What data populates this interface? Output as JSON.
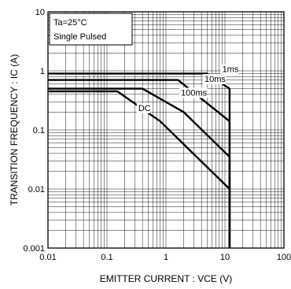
{
  "chart_data": {
    "type": "line",
    "title": "",
    "xlabel": "EMITTER  CURRENT : VCE (V)",
    "ylabel": "TRANSITION FREQUENCY : IC (A)",
    "x_scale": "log",
    "y_scale": "log",
    "xlim": [
      0.01,
      100
    ],
    "ylim": [
      0.001,
      10
    ],
    "x_ticks": [
      "0.01",
      "0.1",
      "1",
      "10",
      "100"
    ],
    "y_ticks": [
      "0.001",
      "0.01",
      "0.1",
      "1",
      "10"
    ],
    "grid": true,
    "legend_box": [
      "Ta=25°C",
      "Single Pulsed"
    ],
    "series": [
      {
        "name": "1ms",
        "points": [
          [
            0.01,
            0.9
          ],
          [
            5.0,
            0.9
          ],
          [
            12,
            0.5
          ],
          [
            12,
            0.001
          ]
        ]
      },
      {
        "name": "10ms",
        "points": [
          [
            0.01,
            0.7
          ],
          [
            1.6,
            0.7
          ],
          [
            12,
            0.14
          ],
          [
            12,
            0.001
          ]
        ]
      },
      {
        "name": "100ms",
        "points": [
          [
            0.01,
            0.5
          ],
          [
            0.4,
            0.5
          ],
          [
            2.0,
            0.2
          ],
          [
            12,
            0.035
          ],
          [
            12,
            0.001
          ]
        ]
      },
      {
        "name": "DC",
        "points": [
          [
            0.01,
            0.45
          ],
          [
            0.15,
            0.45
          ],
          [
            0.8,
            0.14
          ],
          [
            12,
            0.01
          ],
          [
            12,
            0.001
          ]
        ]
      }
    ],
    "annotations": [
      {
        "text": "1ms",
        "at": [
          9.0,
          0.95
        ]
      },
      {
        "text": "10ms",
        "at": [
          4.5,
          0.65
        ]
      },
      {
        "text": "100ms",
        "at": [
          1.8,
          0.38
        ]
      },
      {
        "text": "DC",
        "at": [
          0.34,
          0.21
        ]
      }
    ]
  }
}
